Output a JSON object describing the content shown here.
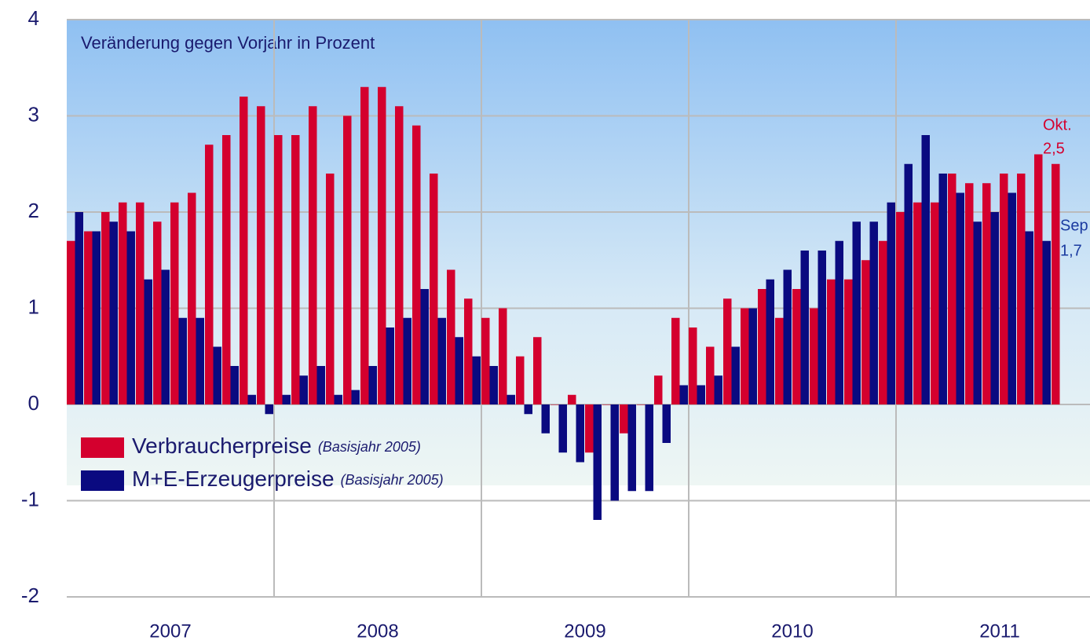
{
  "chart_data": {
    "type": "bar",
    "subtitle": "Veränderung  gegen Vorjahr  in Prozent",
    "x_labels": [
      "2007",
      "2008",
      "2009",
      "2010",
      "2011"
    ],
    "ylim": [
      -2,
      4
    ],
    "yticks": [
      4,
      3,
      2,
      1,
      0,
      -1,
      -2
    ],
    "grid": true,
    "legend": "bottom-left",
    "series": [
      {
        "name": "Verbraucherpreise",
        "note": "(Basisjahr 2005)",
        "color": "#d4002e",
        "values": [
          1.7,
          1.8,
          2.0,
          2.1,
          2.1,
          1.9,
          2.1,
          2.2,
          2.7,
          2.8,
          3.2,
          3.1,
          2.8,
          2.8,
          3.1,
          2.4,
          3.0,
          3.3,
          3.3,
          3.1,
          2.9,
          2.4,
          1.4,
          1.1,
          0.9,
          1.0,
          0.5,
          0.7,
          0.0,
          0.1,
          -0.5,
          0.0,
          -0.3,
          0.0,
          0.3,
          0.9,
          0.8,
          0.6,
          1.1,
          1.0,
          1.2,
          0.9,
          1.2,
          1.0,
          1.3,
          1.3,
          1.5,
          1.7,
          2.0,
          2.1,
          2.1,
          2.4,
          2.3,
          2.3,
          2.4,
          2.4,
          2.6,
          2.5
        ]
      },
      {
        "name": "M+E-Erzeugerpreise",
        "note": "(Basisjahr 2005)",
        "color": "#0a0a80",
        "values": [
          2.0,
          1.8,
          1.9,
          1.8,
          1.3,
          1.4,
          0.9,
          0.9,
          0.6,
          0.4,
          0.1,
          -0.1,
          0.1,
          0.3,
          0.4,
          0.1,
          0.15,
          0.4,
          0.8,
          0.9,
          1.2,
          0.9,
          0.7,
          0.5,
          0.4,
          0.1,
          -0.1,
          -0.3,
          -0.5,
          -0.6,
          -1.2,
          -1.0,
          -0.9,
          -0.9,
          -0.4,
          0.2,
          0.2,
          0.3,
          0.6,
          1.0,
          1.3,
          1.4,
          1.6,
          1.6,
          1.7,
          1.9,
          1.9,
          2.1,
          2.5,
          2.8,
          2.4,
          2.2,
          1.9,
          2.0,
          2.2,
          1.8,
          1.7,
          null
        ]
      }
    ],
    "annotations": [
      {
        "text": "Okt.",
        "series": 0
      },
      {
        "text": "2,5",
        "series": 0
      },
      {
        "text": "Sep",
        "series": 1
      },
      {
        "text": "1,7",
        "series": 1
      }
    ]
  }
}
